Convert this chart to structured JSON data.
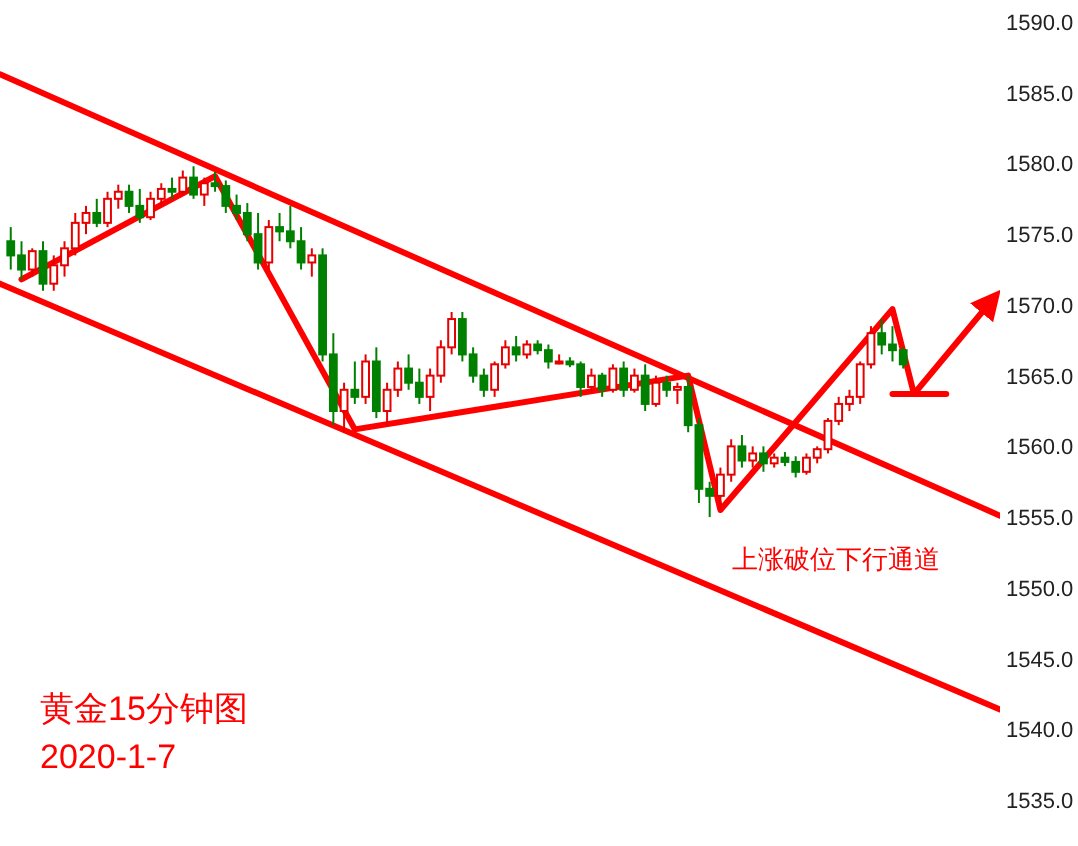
{
  "chart_data": {
    "type": "candlestick",
    "tick_labels": "y",
    "ylim": [
      1535,
      1590
    ],
    "yticks": [
      {
        "value": 1535,
        "label": "1535.0"
      },
      {
        "value": 1540,
        "label": "1540.0"
      },
      {
        "value": 1545,
        "label": "1545.0"
      },
      {
        "value": 1550,
        "label": "1550.0"
      },
      {
        "value": 1555,
        "label": "1555.0"
      },
      {
        "value": 1560,
        "label": "1560.0"
      },
      {
        "value": 1565,
        "label": "1565.0"
      },
      {
        "value": 1570,
        "label": "1570.0"
      },
      {
        "value": 1575,
        "label": "1575.0"
      },
      {
        "value": 1580,
        "label": "1580.0"
      },
      {
        "value": 1585,
        "label": "1585.0"
      },
      {
        "value": 1590,
        "label": "1590.0"
      }
    ],
    "categories": [
      null,
      null,
      null,
      null,
      null,
      null,
      null,
      null,
      null,
      null,
      null,
      null,
      null,
      null,
      null,
      null,
      null,
      null,
      null,
      null,
      null,
      null,
      null,
      null,
      null,
      null,
      null,
      null,
      null,
      null,
      null,
      null,
      null,
      null,
      null,
      null,
      null,
      null,
      null,
      null,
      null,
      null,
      null,
      null,
      null,
      null,
      null,
      null,
      null,
      null,
      null,
      null,
      null,
      null,
      null,
      null,
      null,
      null,
      null,
      null,
      null,
      null,
      null,
      null,
      null,
      null,
      null,
      null,
      null,
      null,
      null,
      null,
      null,
      null,
      null,
      null,
      null,
      null,
      null,
      null,
      null,
      null,
      null,
      null,
      null,
      null,
      null,
      null,
      null,
      null,
      null,
      null,
      null,
      null
    ],
    "colors": [
      null,
      "#008000",
      "#008000",
      "#e60000",
      "#008000",
      "#e60000",
      "#e60000",
      "#e60000",
      "#e60000",
      "#008000",
      "#e60000",
      "#e60000",
      "#008000",
      "#008000",
      "#e60000",
      "#e60000",
      "#008000",
      "#e60000",
      "#008000",
      "#e60000",
      "#008000",
      "#008000",
      "#008000",
      "#008000",
      "#008000",
      "#e60000",
      "#008000",
      "#008000",
      "#008000",
      "#e60000",
      "#008000",
      "#008000",
      "#e60000",
      "#008000",
      "#e60000",
      "#008000",
      "#e60000",
      "#e60000",
      "#008000",
      "#008000",
      "#e60000",
      "#e60000",
      "#e60000",
      "#008000",
      "#008000",
      "#008000",
      "#e60000",
      "#e60000",
      "#008000",
      "#e60000",
      "#008000",
      "#008000",
      "#e60000",
      "#008000",
      "#008000",
      "#e60000",
      "#008000",
      "#e60000",
      "#008000",
      "#e60000",
      "#008000",
      "#e60000",
      "#008000",
      "#e60000",
      "#008000",
      "#008000",
      "#008000",
      "#e60000",
      "#e60000",
      "#008000",
      "#e60000",
      "#008000",
      "#e60000",
      "#008000",
      "#008000",
      "#e60000",
      "#e60000",
      "#e60000",
      "#e60000",
      "#e60000",
      "#e60000",
      "#e60000",
      "#008000",
      "#008000",
      "#008000",
      null,
      null,
      null,
      null,
      null,
      null,
      null,
      null,
      null
    ],
    "ohlc": [
      null,
      [
        1574.5,
        1575.5,
        1572.5,
        1573.5
      ],
      [
        1573.5,
        1574.5,
        1571.8,
        1572.5
      ],
      [
        1572.5,
        1574.0,
        1572.0,
        1573.8
      ],
      [
        1573.8,
        1574.5,
        1571.0,
        1571.5
      ],
      [
        1571.5,
        1573.5,
        1571.0,
        1572.8
      ],
      [
        1572.8,
        1574.5,
        1572.0,
        1574.0
      ],
      [
        1574.0,
        1576.5,
        1573.5,
        1575.8
      ],
      [
        1575.8,
        1577.0,
        1575.0,
        1576.5
      ],
      [
        1576.5,
        1577.5,
        1575.5,
        1575.8
      ],
      [
        1575.8,
        1578.0,
        1575.5,
        1577.5
      ],
      [
        1577.5,
        1578.5,
        1576.8,
        1578.0
      ],
      [
        1578.0,
        1578.5,
        1576.5,
        1577.0
      ],
      [
        1577.0,
        1578.2,
        1575.8,
        1576.2
      ],
      [
        1576.2,
        1578.0,
        1576.0,
        1577.5
      ],
      [
        1577.5,
        1578.6,
        1577.0,
        1578.2
      ],
      [
        1578.2,
        1579.0,
        1577.5,
        1578.0
      ],
      [
        1578.0,
        1579.5,
        1577.8,
        1579.0
      ],
      [
        1579.0,
        1579.8,
        1577.5,
        1577.8
      ],
      [
        1577.8,
        1579.0,
        1577.0,
        1578.6
      ],
      [
        1578.6,
        1579.4,
        1578.0,
        1578.4
      ],
      [
        1578.4,
        1578.8,
        1576.5,
        1577.0
      ],
      [
        1577.0,
        1577.8,
        1576.0,
        1576.5
      ],
      [
        1576.5,
        1577.2,
        1574.5,
        1575.0
      ],
      [
        1575.0,
        1576.5,
        1572.5,
        1573.0
      ],
      [
        1573.0,
        1576.0,
        1572.5,
        1575.5
      ],
      [
        1575.5,
        1576.5,
        1574.5,
        1575.2
      ],
      [
        1575.2,
        1577.0,
        1574.0,
        1574.5
      ],
      [
        1574.5,
        1575.5,
        1572.5,
        1573.0
      ],
      [
        1573.0,
        1574.0,
        1572.0,
        1573.5
      ],
      [
        1573.5,
        1574.0,
        1566.0,
        1566.5
      ],
      [
        1566.5,
        1568.0,
        1561.5,
        1562.5
      ],
      [
        1562.5,
        1564.5,
        1561.0,
        1564.0
      ],
      [
        1564.0,
        1566.0,
        1563.0,
        1563.5
      ],
      [
        1563.5,
        1566.5,
        1563.0,
        1566.0
      ],
      [
        1566.0,
        1567.0,
        1562.0,
        1562.5
      ],
      [
        1562.5,
        1564.5,
        1561.5,
        1564.0
      ],
      [
        1564.0,
        1566.0,
        1563.5,
        1565.5
      ],
      [
        1565.5,
        1566.5,
        1564.0,
        1564.5
      ],
      [
        1564.5,
        1565.5,
        1563.0,
        1563.5
      ],
      [
        1563.5,
        1565.5,
        1562.5,
        1565.0
      ],
      [
        1565.0,
        1567.5,
        1564.5,
        1567.0
      ],
      [
        1567.0,
        1569.5,
        1566.5,
        1569.0
      ],
      [
        1569.0,
        1569.5,
        1566.0,
        1566.5
      ],
      [
        1566.5,
        1567.0,
        1564.5,
        1565.0
      ],
      [
        1565.0,
        1565.5,
        1563.5,
        1564.0
      ],
      [
        1564.0,
        1566.0,
        1563.5,
        1565.8
      ],
      [
        1565.8,
        1567.5,
        1565.5,
        1567.0
      ],
      [
        1567.0,
        1567.8,
        1566.0,
        1566.5
      ],
      [
        1566.5,
        1567.5,
        1566.2,
        1567.2
      ],
      [
        1567.2,
        1567.5,
        1566.5,
        1566.8
      ],
      [
        1566.8,
        1567.2,
        1565.5,
        1566.0
      ],
      [
        1566.0,
        1566.5,
        1565.8,
        1566.0
      ],
      [
        1566.0,
        1566.3,
        1565.6,
        1565.8
      ],
      [
        1565.8,
        1566.0,
        1563.5,
        1564.2
      ],
      [
        1564.2,
        1565.5,
        1563.8,
        1565.0
      ],
      [
        1565.0,
        1565.2,
        1563.5,
        1564.0
      ],
      [
        1564.0,
        1565.8,
        1563.8,
        1565.5
      ],
      [
        1565.5,
        1566.0,
        1563.5,
        1564.0
      ],
      [
        1564.0,
        1565.5,
        1563.8,
        1565.0
      ],
      [
        1565.0,
        1565.8,
        1562.5,
        1563.0
      ],
      [
        1563.0,
        1565.0,
        1562.8,
        1564.5
      ],
      [
        1564.5,
        1565.0,
        1563.5,
        1564.0
      ],
      [
        1564.0,
        1564.5,
        1563.0,
        1564.2
      ],
      [
        1564.2,
        1565.0,
        1561.0,
        1561.5
      ],
      [
        1561.5,
        1562.0,
        1556.0,
        1557.0
      ],
      [
        1557.0,
        1557.5,
        1555.0,
        1556.5
      ],
      [
        1556.5,
        1558.5,
        1555.5,
        1558.0
      ],
      [
        1558.0,
        1560.5,
        1557.5,
        1560.0
      ],
      [
        1560.0,
        1560.8,
        1558.5,
        1559.0
      ],
      [
        1559.0,
        1560.0,
        1558.5,
        1559.5
      ],
      [
        1559.5,
        1560.0,
        1558.2,
        1558.8
      ],
      [
        1558.8,
        1559.5,
        1558.5,
        1559.2
      ],
      [
        1559.2,
        1559.6,
        1558.6,
        1558.9
      ],
      [
        1558.9,
        1559.3,
        1557.8,
        1558.2
      ],
      [
        1558.2,
        1559.5,
        1558.0,
        1559.2
      ],
      [
        1559.2,
        1560.0,
        1558.8,
        1559.8
      ],
      [
        1559.8,
        1562.0,
        1559.5,
        1561.8
      ],
      [
        1561.8,
        1563.5,
        1561.5,
        1563.0
      ],
      [
        1563.0,
        1564.0,
        1562.5,
        1563.5
      ],
      [
        1563.5,
        1566.0,
        1563.0,
        1565.8
      ],
      [
        1565.8,
        1568.5,
        1565.5,
        1568.0
      ],
      [
        1568.0,
        1569.0,
        1566.5,
        1567.2
      ],
      [
        1567.2,
        1568.5,
        1566.0,
        1566.8
      ],
      [
        1566.8,
        1567.0,
        1565.5,
        1565.8
      ],
      null,
      null,
      null,
      null,
      null,
      null,
      null,
      null,
      null
    ],
    "series": [
      {
        "type": "line",
        "color": "#ff0000",
        "values": [
          1586.3,
          null,
          null,
          null,
          null,
          null,
          null,
          null,
          null,
          null,
          null,
          null,
          null,
          null,
          null,
          null,
          null,
          null,
          null,
          null,
          null,
          null,
          null,
          null,
          null,
          null,
          null,
          null,
          null,
          null,
          null,
          null,
          null,
          null,
          null,
          null,
          null,
          null,
          null,
          null,
          null,
          null,
          null,
          null,
          null,
          null,
          null,
          null,
          null,
          null,
          null,
          null,
          null,
          null,
          null,
          null,
          null,
          null,
          null,
          null,
          null,
          null,
          null,
          null,
          null,
          null,
          null,
          null,
          null,
          null,
          null,
          null,
          null,
          null,
          null,
          null,
          null,
          null,
          null,
          null,
          null,
          null,
          null,
          null,
          null,
          null,
          null,
          null,
          null,
          null,
          null,
          null,
          null,
          1555.1
        ]
      },
      {
        "type": "line",
        "color": "#ff0000",
        "values": [
          1571.5,
          null,
          null,
          null,
          null,
          null,
          null,
          null,
          null,
          null,
          null,
          null,
          null,
          null,
          null,
          null,
          null,
          null,
          null,
          null,
          null,
          null,
          null,
          null,
          null,
          null,
          null,
          null,
          null,
          null,
          null,
          null,
          null,
          null,
          null,
          null,
          null,
          null,
          null,
          null,
          null,
          null,
          null,
          null,
          null,
          null,
          null,
          null,
          null,
          null,
          null,
          null,
          null,
          null,
          null,
          null,
          null,
          null,
          null,
          null,
          null,
          null,
          null,
          null,
          null,
          null,
          null,
          null,
          null,
          null,
          null,
          null,
          null,
          null,
          null,
          null,
          null,
          null,
          null,
          null,
          null,
          null,
          null,
          null,
          null,
          null,
          null,
          null,
          null,
          null,
          null,
          null,
          null,
          1541.4
        ]
      },
      {
        "type": "line",
        "color": "#ff0000",
        "values": [
          null,
          null,
          1571.8,
          null,
          null,
          null,
          null,
          null,
          null,
          null,
          null,
          null,
          null,
          null,
          null,
          null,
          null,
          null,
          null,
          null,
          1579.1,
          null,
          null,
          null,
          null,
          null,
          null,
          null,
          null,
          null,
          null,
          null,
          null,
          1561.2,
          null,
          null,
          null,
          null,
          null,
          null,
          null,
          null,
          null,
          null,
          null,
          null,
          null,
          null,
          null,
          null,
          null,
          null,
          null,
          null,
          null,
          null,
          null,
          null,
          null,
          null,
          null,
          null,
          null,
          null,
          1565.0,
          null,
          null,
          1555.5,
          null,
          null,
          null,
          null,
          null,
          null,
          null,
          null,
          null,
          null,
          null,
          null,
          null,
          null,
          null,
          1569.7,
          null,
          1563.7,
          null,
          null,
          null,
          null,
          null,
          null,
          1570.1,
          null
        ]
      },
      {
        "type": "line",
        "color": "#ff0000",
        "values": [
          null,
          null,
          null,
          null,
          null,
          null,
          null,
          null,
          null,
          null,
          null,
          null,
          null,
          null,
          null,
          null,
          null,
          null,
          null,
          null,
          null,
          null,
          null,
          null,
          null,
          null,
          null,
          null,
          null,
          null,
          null,
          null,
          null,
          null,
          null,
          null,
          null,
          null,
          null,
          null,
          null,
          null,
          null,
          null,
          null,
          null,
          null,
          null,
          null,
          null,
          null,
          null,
          null,
          null,
          null,
          null,
          null,
          null,
          null,
          null,
          null,
          null,
          null,
          null,
          null,
          null,
          null,
          null,
          null,
          null,
          null,
          null,
          null,
          null,
          null,
          null,
          null,
          null,
          null,
          null,
          null,
          null,
          null,
          1563.7,
          null,
          null,
          null,
          null,
          1563.7,
          null,
          null,
          null,
          null,
          null
        ]
      }
    ],
    "annotations": [
      "黄金15分钟图",
      "2020-1-7",
      "上涨破位下行通道"
    ]
  }
}
